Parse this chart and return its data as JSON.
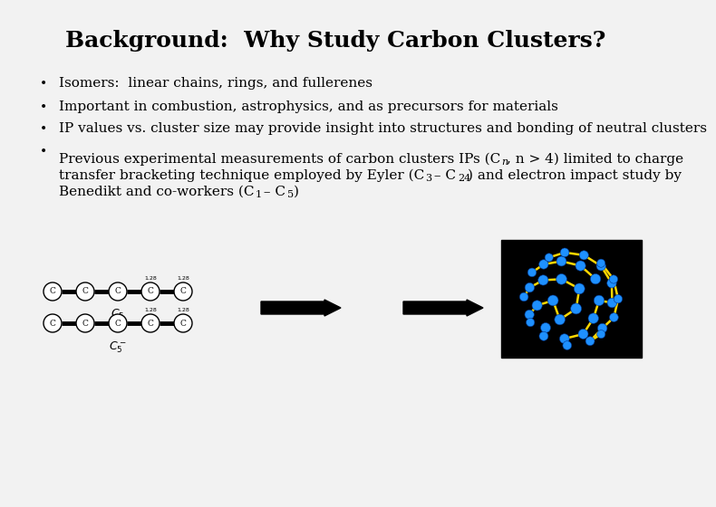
{
  "title": "Background:  Why Study Carbon Clusters?",
  "slide_bg": "#f2f2f2",
  "bullet1": "Isomers:  linear chains, rings, and fullerenes",
  "bullet2": "Important in combustion, astrophysics, and as precursors for materials",
  "bullet3": "IP values vs. cluster size may provide insight into structures and bonding of neutral clusters",
  "bullet4a": "Previous experimental measurements of carbon clusters IPs (C",
  "bullet4b": ", n > 4) limited to charge",
  "bullet4c": "transfer bracketing technique employed by Eyler (C",
  "bullet4d": " – C",
  "bullet4e": ") and electron impact study by",
  "bullet4f": "Benedikt and co-workers (C",
  "bullet4g": " – C",
  "bullet4h": ")",
  "title_fontsize": 18,
  "bullet_fontsize": 11,
  "fullerene_node_color": "#1e90ff",
  "fullerene_bond_color": "#ffd700",
  "chain_label1": "C",
  "chain_label1_sub": "5",
  "chain_label2": "C",
  "chain_label2_sub": "5",
  "chain_label2_sup": "−"
}
